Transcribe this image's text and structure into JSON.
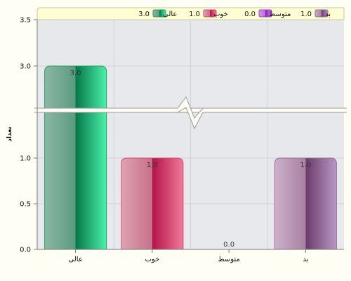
{
  "chart_data": {
    "type": "bar",
    "ylabel": "تعداد",
    "categories": [
      "عالی",
      "خوب",
      "متوسط",
      "بد"
    ],
    "values": [
      3.0,
      1.0,
      0.0,
      1.0
    ],
    "value_labels": [
      "3.0",
      "1.0",
      "0.0",
      "1.0"
    ],
    "y_ticks_lower": [
      "0.0",
      "0.5",
      "1.0"
    ],
    "y_ticks_upper": [
      "3.0",
      "3.5"
    ],
    "axis_break": [
      1.5,
      2.5
    ],
    "ylim": [
      0,
      3.5
    ],
    "grid": true,
    "legend_position": "top",
    "colors": [
      "#1f9e6a",
      "#d24a6e",
      "#a83cc8",
      "#9a6b96"
    ],
    "legend": [
      {
        "label": "بد",
        "value": "1.0"
      },
      {
        "label": "متوسط",
        "value": "0.0"
      },
      {
        "label": "خوب",
        "value": "1.0"
      },
      {
        "label": "عالی",
        "value": "3.0"
      }
    ]
  }
}
